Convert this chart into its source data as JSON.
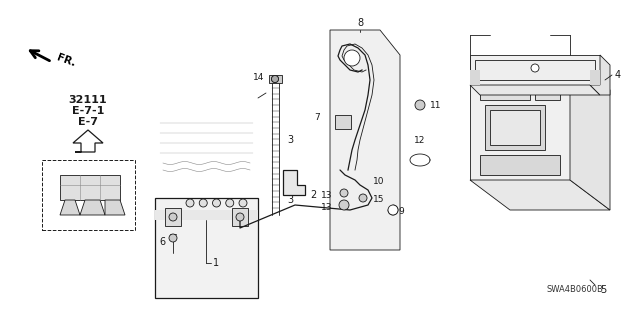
{
  "bg_color": "#ffffff",
  "lc": "#1a1a1a",
  "part_code": "SWA4B0600B",
  "ref_labels": [
    "E-7",
    "E-7-1",
    "32111"
  ],
  "figsize": [
    6.4,
    3.19
  ],
  "dpi": 100
}
